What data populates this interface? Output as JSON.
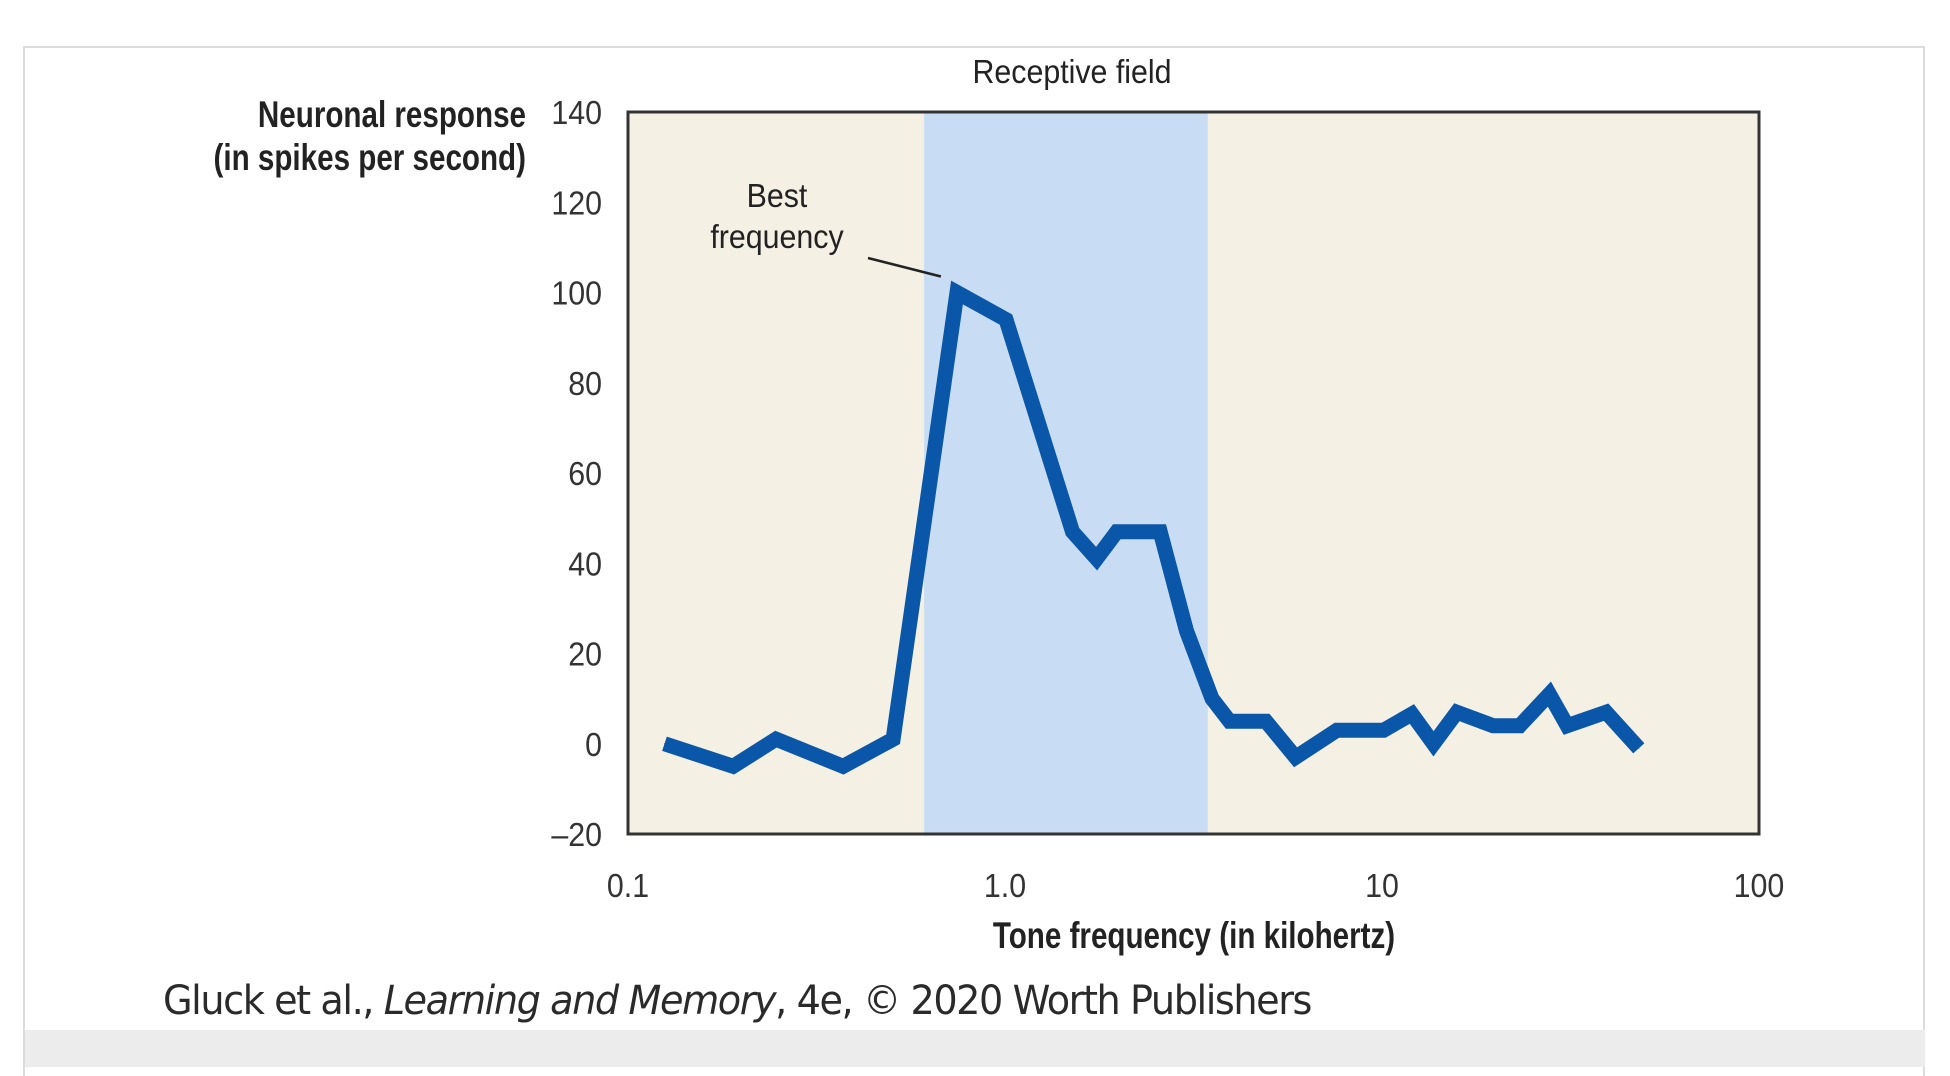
{
  "chart_data": {
    "type": "line",
    "title": "Receptive field",
    "xlabel": "Tone frequency (in kilohertz)",
    "ylabel_lines": [
      "Neuronal response",
      "(in spikes per second)"
    ],
    "xscale": "log",
    "xlim": [
      0.1,
      100
    ],
    "ylim": [
      -20,
      140
    ],
    "xticks": [
      {
        "value": 0.1,
        "label": "0.1"
      },
      {
        "value": 1,
        "label": "1.0"
      },
      {
        "value": 10,
        "label": "10"
      },
      {
        "value": 100,
        "label": "100"
      }
    ],
    "yticks": [
      {
        "value": 140,
        "label": "140"
      },
      {
        "value": 120,
        "label": "120"
      },
      {
        "value": 100,
        "label": "100"
      },
      {
        "value": 80,
        "label": "80"
      },
      {
        "value": 60,
        "label": "60"
      },
      {
        "value": 40,
        "label": "40"
      },
      {
        "value": 20,
        "label": "20"
      },
      {
        "value": 0,
        "label": "0"
      },
      {
        "value": -20,
        "label": "–20"
      }
    ],
    "grid": false,
    "receptive_field_band": {
      "from": 0.61,
      "to": 3.45,
      "label": "Receptive field"
    },
    "annotation": {
      "lines": [
        "Best",
        "frequency"
      ],
      "target": {
        "x": 0.75,
        "y": 100
      }
    },
    "series": [
      {
        "name": "Neuronal response",
        "x": [
          0.125,
          0.19,
          0.247,
          0.372,
          0.505,
          0.746,
          1.006,
          1.51,
          1.75,
          1.98,
          2.58,
          3.03,
          3.54,
          3.94,
          4.92,
          5.9,
          7.59,
          10.1,
          12.0,
          13.7,
          15.8,
          19.7,
          23.2,
          27.8,
          31.0,
          39.3,
          48.0
        ],
        "y": [
          0,
          -5,
          1,
          -5,
          1,
          100,
          94,
          47,
          41,
          47,
          47,
          25,
          10,
          5,
          5,
          -3,
          3,
          3,
          6.6,
          0,
          7,
          4,
          4,
          11,
          4,
          7,
          -1
        ]
      }
    ],
    "colors": {
      "line": "#0a56a8",
      "band": "#c8ddf3",
      "plot_bg": "#f4f0e4",
      "frame": "#333333"
    }
  },
  "citation": {
    "authors": "Gluck et al., ",
    "book_title": "Learning and Memory",
    "rest": ", 4e, © 2020 Worth Publishers"
  }
}
